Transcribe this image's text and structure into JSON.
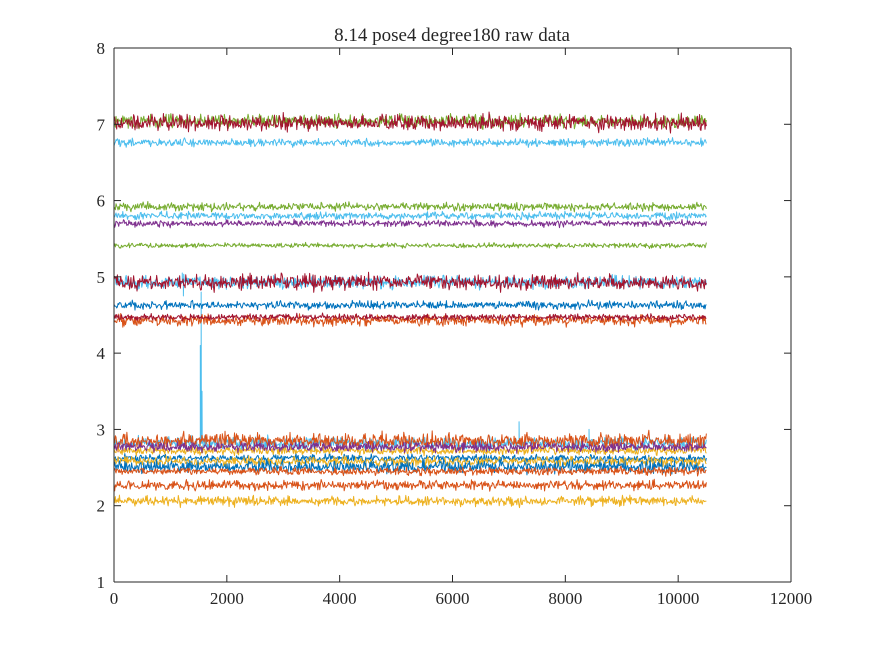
{
  "chart_data": {
    "type": "line",
    "title": "8.14 pose4  degree180 raw data",
    "xlabel": "",
    "ylabel": "",
    "xlim": [
      0,
      12000
    ],
    "ylim": [
      1,
      8
    ],
    "xticks": [
      0,
      2000,
      4000,
      6000,
      8000,
      10000,
      12000
    ],
    "yticks": [
      1,
      2,
      3,
      4,
      5,
      6,
      7,
      8
    ],
    "xtick_labels": [
      "0",
      "2000",
      "4000",
      "6000",
      "8000",
      "10000",
      "12000"
    ],
    "ytick_labels": [
      "1",
      "2",
      "3",
      "4",
      "5",
      "6",
      "7",
      "8"
    ],
    "grid": false,
    "legend": "none",
    "sample_count": 10500,
    "palette": [
      "#0072bd",
      "#d95319",
      "#edb120",
      "#7e2f8e",
      "#77ac30",
      "#4dbeee",
      "#a2142f"
    ],
    "series": [
      {
        "color": "#4dbeee",
        "mean": 2.82,
        "noise": 0.04,
        "spikes": [
          [
            1530,
            4.1
          ],
          [
            1545,
            4.8
          ],
          [
            1560,
            3.5
          ],
          [
            7180,
            3.1
          ],
          [
            8420,
            3.0
          ]
        ]
      },
      {
        "color": "#d95319",
        "mean": 2.85,
        "noise": 0.05
      },
      {
        "color": "#edb120",
        "mean": 2.72,
        "noise": 0.025
      },
      {
        "color": "#7e2f8e",
        "mean": 2.77,
        "noise": 0.03
      },
      {
        "color": "#0072bd",
        "mean": 2.62,
        "noise": 0.025
      },
      {
        "color": "#edb120",
        "mean": 2.58,
        "noise": 0.03
      },
      {
        "color": "#0072bd",
        "mean": 2.51,
        "noise": 0.04
      },
      {
        "color": "#d95319",
        "mean": 2.45,
        "noise": 0.025
      },
      {
        "color": "#d95319",
        "mean": 2.27,
        "noise": 0.03
      },
      {
        "color": "#edb120",
        "mean": 2.06,
        "noise": 0.03
      },
      {
        "color": "#d95319",
        "mean": 4.43,
        "noise": 0.035
      },
      {
        "color": "#a2142f",
        "mean": 4.47,
        "noise": 0.02
      },
      {
        "color": "#0072bd",
        "mean": 4.63,
        "noise": 0.025
      },
      {
        "color": "#4dbeee",
        "mean": 4.93,
        "noise": 0.04,
        "spikes": [
          [
            1210,
            5.05
          ],
          [
            1230,
            4.75
          ]
        ]
      },
      {
        "color": "#a2142f",
        "mean": 4.93,
        "noise": 0.05
      },
      {
        "color": "#77ac30",
        "mean": 5.41,
        "noise": 0.015
      },
      {
        "color": "#7e2f8e",
        "mean": 5.7,
        "noise": 0.02
      },
      {
        "color": "#4dbeee",
        "mean": 5.8,
        "noise": 0.025
      },
      {
        "color": "#77ac30",
        "mean": 5.92,
        "noise": 0.025
      },
      {
        "color": "#4dbeee",
        "mean": 6.76,
        "noise": 0.025
      },
      {
        "color": "#77ac30",
        "mean": 7.04,
        "noise": 0.04
      },
      {
        "color": "#a2142f",
        "mean": 7.02,
        "noise": 0.05
      }
    ]
  }
}
